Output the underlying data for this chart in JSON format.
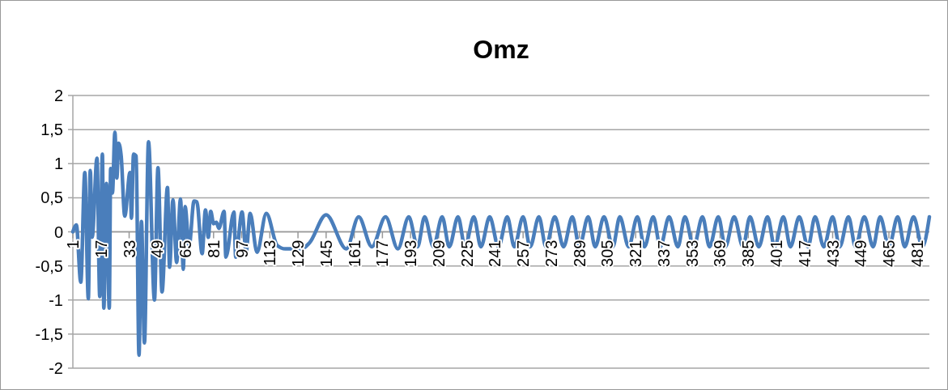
{
  "chart_data": {
    "type": "line",
    "title": "Omz",
    "xlim": [
      1,
      488
    ],
    "xticks": [
      1,
      17,
      33,
      49,
      65,
      81,
      97,
      113,
      129,
      145,
      161,
      177,
      193,
      209,
      225,
      241,
      257,
      273,
      289,
      305,
      321,
      337,
      353,
      369,
      385,
      401,
      417,
      433,
      449,
      465,
      481
    ],
    "ylim": [
      -2,
      2
    ],
    "yticks": [
      {
        "value": -2,
        "label": "-2"
      },
      {
        "value": -1.5,
        "label": "-1,5"
      },
      {
        "value": -1,
        "label": "-1"
      },
      {
        "value": -0.5,
        "label": "-0,5"
      },
      {
        "value": 0,
        "label": "0"
      },
      {
        "value": 0.5,
        "label": "0,5"
      },
      {
        "value": 1,
        "label": "1"
      },
      {
        "value": 1.5,
        "label": "1,5"
      },
      {
        "value": 2,
        "label": "2"
      }
    ],
    "grid": "y",
    "marker": "none",
    "line_style": "solid",
    "series": [
      {
        "color": "#4a7ebb",
        "x": [
          1,
          3,
          5.5,
          7.8,
          9.8,
          10.9,
          12,
          14.7,
          16.3,
          17.8,
          18.6,
          20.1,
          21.7,
          22.5,
          23.5,
          24.9,
          26,
          27,
          28.5,
          30.5,
          33.5,
          34.3,
          35.5,
          37,
          38.6,
          40,
          41.7,
          44,
          47.4,
          49.4,
          51.7,
          54.8,
          56,
          57.9,
          60,
          62.2,
          63.8,
          64.8,
          67.1,
          69.9,
          71.5,
          74.5,
          76.4,
          78,
          79.4,
          81,
          82.6,
          84,
          87,
          88,
          92.6,
          93.6,
          97.2,
          99.5,
          101.8,
          105.7,
          111,
          117.2,
          121.8,
          131,
          135.6,
          145,
          156.5,
          163.5,
          171,
          178.8,
          185.8,
          192,
          197,
          201,
          206,
          211,
          215,
          220,
          224,
          229,
          233,
          238,
          243,
          248,
          252,
          257,
          261,
          266,
          270,
          275,
          280,
          285,
          289,
          294,
          298,
          303,
          308,
          312,
          317,
          322,
          326,
          331,
          335,
          340,
          345,
          349,
          354,
          359,
          363,
          368,
          372,
          377,
          382,
          386,
          391,
          396,
          400,
          405,
          409,
          414,
          419,
          423,
          428,
          433,
          437,
          442,
          446,
          451,
          456,
          460,
          465,
          470,
          474,
          479,
          484,
          488
        ],
        "values": [
          0,
          0.1,
          -0.74,
          0.87,
          -0.98,
          0.9,
          -0.08,
          1.08,
          -0.95,
          1.14,
          -1.12,
          0.71,
          -1.12,
          0.93,
          0.57,
          1.46,
          0.79,
          1.3,
          1.1,
          0.23,
          0.87,
          0.2,
          1.14,
          1.11,
          -1.81,
          0.15,
          -1.63,
          1.32,
          -1,
          0.94,
          -0.88,
          0.65,
          -0.52,
          0.47,
          -0.45,
          0.48,
          -0.55,
          0.37,
          -0.21,
          0.45,
          0.44,
          -0.32,
          0.32,
          -0.08,
          0.3,
          0.12,
          0.14,
          0.05,
          0.3,
          -0.37,
          0.29,
          -0.37,
          0.29,
          -0.3,
          0.27,
          -0.3,
          0.27,
          -0.2,
          -0.25,
          -0.25,
          -0.16,
          0.25,
          -0.25,
          0.22,
          -0.22,
          0.22,
          -0.25,
          0.22,
          -0.22,
          0.22,
          -0.22,
          0.22,
          -0.22,
          0.22,
          -0.22,
          0.22,
          -0.22,
          0.22,
          -0.22,
          0.22,
          -0.22,
          0.22,
          -0.22,
          0.22,
          -0.22,
          0.22,
          -0.22,
          0.22,
          -0.22,
          0.22,
          -0.22,
          0.22,
          -0.22,
          0.22,
          -0.22,
          0.22,
          -0.22,
          0.22,
          -0.22,
          0.22,
          -0.22,
          0.22,
          -0.22,
          0.22,
          -0.22,
          0.22,
          -0.22,
          0.22,
          -0.22,
          0.22,
          -0.22,
          0.22,
          -0.22,
          0.22,
          -0.22,
          0.22,
          -0.22,
          0.22,
          -0.22,
          0.22,
          -0.22,
          0.22,
          -0.22,
          0.22,
          -0.22,
          0.22,
          -0.22,
          0.22,
          -0.22,
          0.22,
          -0.22,
          0.22
        ]
      }
    ]
  }
}
